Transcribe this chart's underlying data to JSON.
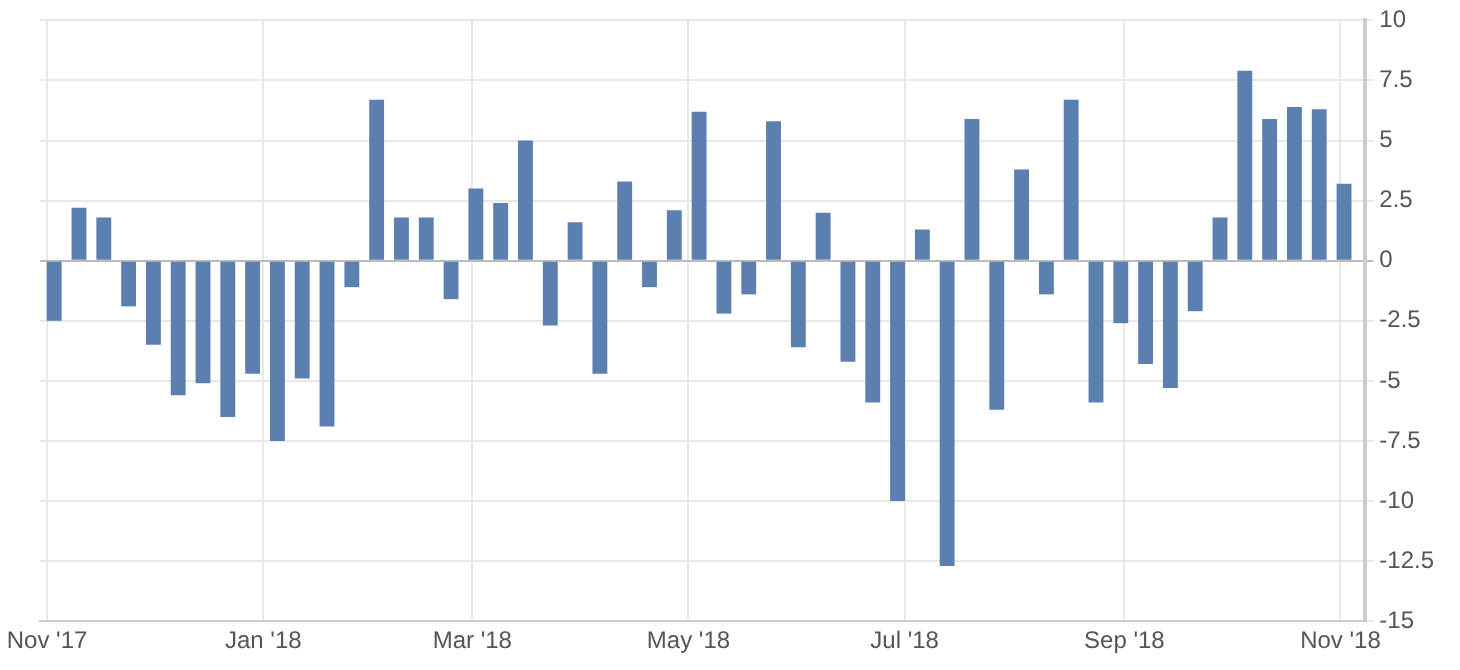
{
  "chart_data": {
    "type": "bar",
    "color": "#5b80b0",
    "x": [
      "2017-11-03",
      "2017-11-10",
      "2017-11-17",
      "2017-11-24",
      "2017-12-01",
      "2017-12-08",
      "2017-12-15",
      "2017-12-22",
      "2017-12-29",
      "2018-01-05",
      "2018-01-12",
      "2018-01-19",
      "2018-01-26",
      "2018-02-02",
      "2018-02-09",
      "2018-02-16",
      "2018-02-23",
      "2018-03-02",
      "2018-03-09",
      "2018-03-16",
      "2018-03-23",
      "2018-03-30",
      "2018-04-06",
      "2018-04-13",
      "2018-04-20",
      "2018-04-27",
      "2018-05-04",
      "2018-05-11",
      "2018-05-18",
      "2018-05-25",
      "2018-06-01",
      "2018-06-08",
      "2018-06-15",
      "2018-06-22",
      "2018-06-29",
      "2018-07-06",
      "2018-07-13",
      "2018-07-20",
      "2018-07-27",
      "2018-08-03",
      "2018-08-10",
      "2018-08-17",
      "2018-08-24",
      "2018-08-31",
      "2018-09-07",
      "2018-09-14",
      "2018-09-21",
      "2018-09-28",
      "2018-10-05",
      "2018-10-12",
      "2018-10-19",
      "2018-10-26",
      "2018-11-02"
    ],
    "values": [
      -2.5,
      2.2,
      1.8,
      -1.9,
      -3.5,
      -5.6,
      -5.1,
      -6.5,
      -4.7,
      -7.5,
      -4.9,
      -6.9,
      -1.1,
      6.7,
      1.8,
      1.8,
      -1.6,
      3.0,
      2.4,
      5.0,
      -2.7,
      1.6,
      -4.7,
      3.3,
      -1.1,
      2.1,
      6.2,
      -2.2,
      -1.4,
      5.8,
      -3.6,
      2.0,
      -4.2,
      -5.9,
      -10.0,
      1.3,
      -12.7,
      5.9,
      -6.2,
      3.8,
      -1.4,
      6.7,
      -5.9,
      -2.6,
      -4.3,
      -5.3,
      -2.1,
      1.8,
      7.9,
      5.9,
      6.4,
      6.3,
      3.2
    ],
    "xlim": [
      "2017-10-30",
      "2018-11-08"
    ],
    "xticks": [
      {
        "value": "2017-11-01",
        "label": "Nov '17"
      },
      {
        "value": "2018-01-01",
        "label": "Jan '18"
      },
      {
        "value": "2018-03-01",
        "label": "Mar '18"
      },
      {
        "value": "2018-05-01",
        "label": "May '18"
      },
      {
        "value": "2018-07-01",
        "label": "Jul '18"
      },
      {
        "value": "2018-09-01",
        "label": "Sep '18"
      },
      {
        "value": "2018-11-01",
        "label": "Nov '18"
      }
    ],
    "ylim": [
      -15,
      10
    ],
    "yticks": [
      -15,
      -12.5,
      -10,
      -7.5,
      -5,
      -2.5,
      0,
      2.5,
      5,
      7.5,
      10
    ],
    "grid": true
  }
}
